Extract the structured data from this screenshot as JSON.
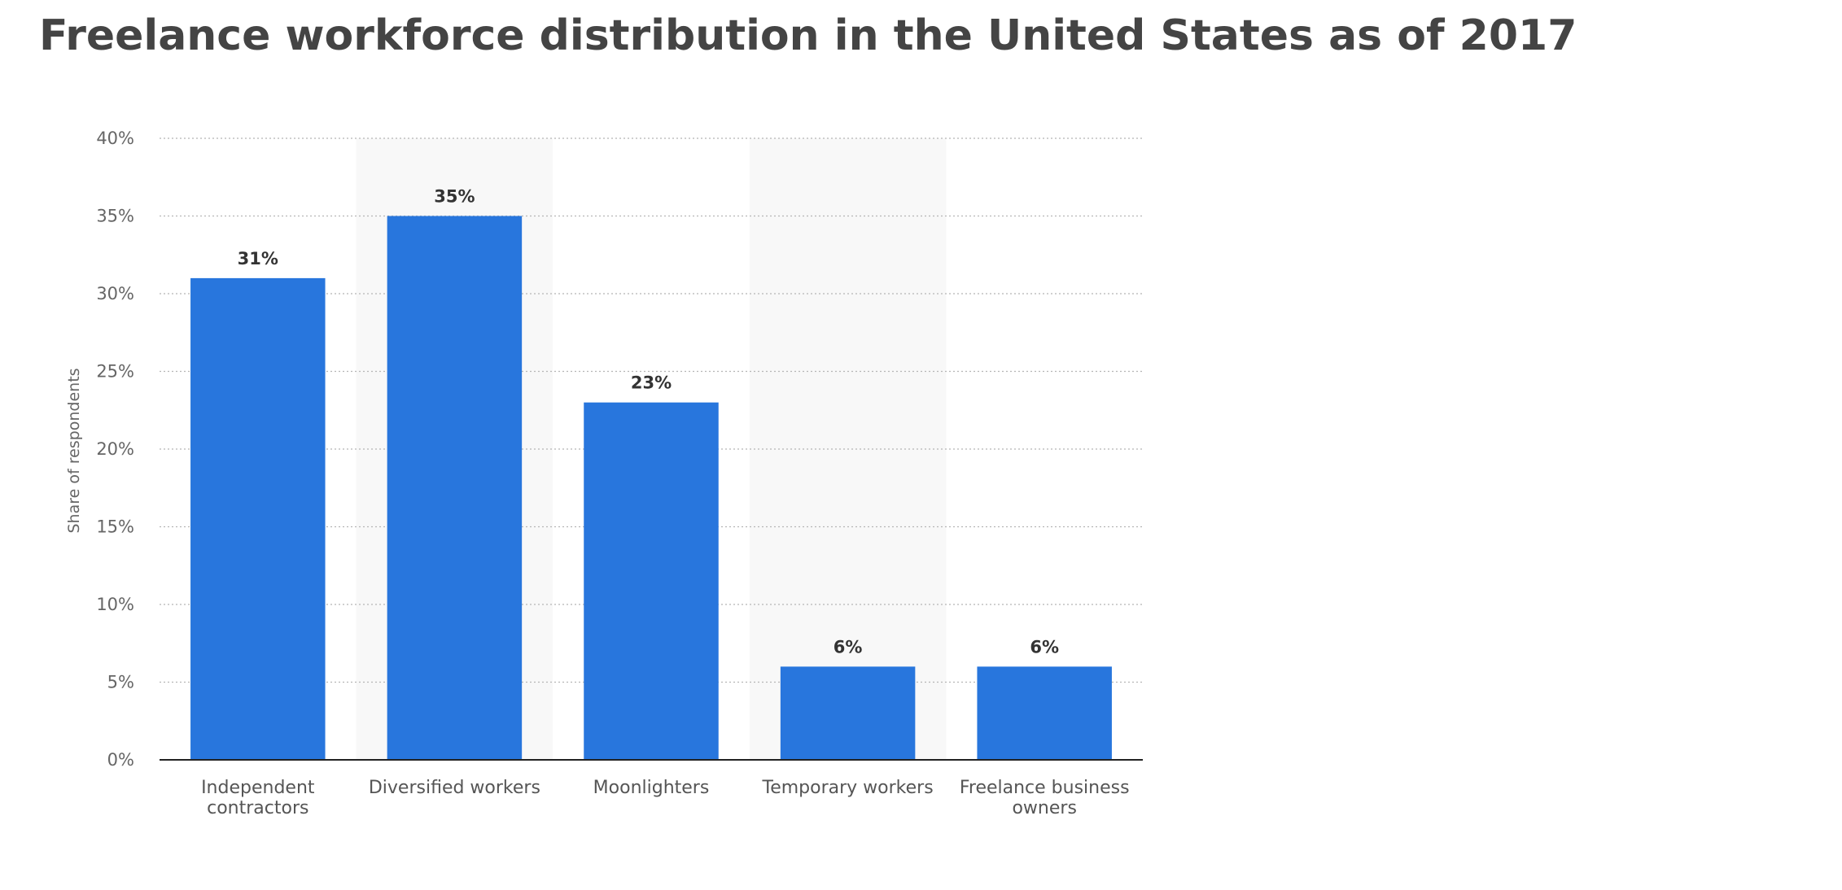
{
  "chart_data": {
    "type": "bar",
    "title": "Freelance workforce distribution in the United States as of 2017",
    "ylabel": "Share of respondents",
    "xlabel": "",
    "categories": [
      "Independent contractors",
      "Diversified workers",
      "Moonlighters",
      "Temporary workers",
      "Freelance business owners"
    ],
    "category_lines": [
      [
        "Independent",
        "contractors"
      ],
      [
        "Diversified workers"
      ],
      [
        "Moonlighters"
      ],
      [
        "Temporary workers"
      ],
      [
        "Freelance business",
        "owners"
      ]
    ],
    "values": [
      31,
      35,
      23,
      6,
      6
    ],
    "data_labels": [
      "31%",
      "35%",
      "23%",
      "6%",
      "6%"
    ],
    "ylim": [
      0,
      40
    ],
    "yticks": [
      0,
      5,
      10,
      15,
      20,
      25,
      30,
      35,
      40
    ],
    "ytick_labels": [
      "0%",
      "5%",
      "10%",
      "15%",
      "20%",
      "25%",
      "30%",
      "35%",
      "40%"
    ],
    "grid": true,
    "bar_color": "#2876dd",
    "alt_band_color": "#f8f8f8"
  }
}
